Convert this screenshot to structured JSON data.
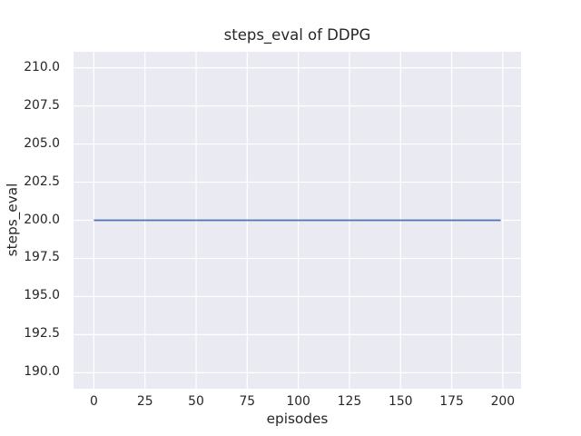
{
  "chart_data": {
    "type": "line",
    "title": "steps_eval of DDPG",
    "xlabel": "episodes",
    "ylabel": "steps_eval",
    "series": [
      {
        "name": "steps_eval",
        "color": "#4c72b0",
        "points": [
          [
            0,
            200.0
          ],
          [
            199,
            200.0
          ]
        ]
      }
    ],
    "xlim": [
      -9.95,
      208.95
    ],
    "ylim": [
      188.95,
      211.05
    ],
    "xticks": [
      0,
      25,
      50,
      75,
      100,
      125,
      150,
      175,
      200
    ],
    "xtick_labels": [
      "0",
      "25",
      "50",
      "75",
      "100",
      "125",
      "150",
      "175",
      "200"
    ],
    "yticks": [
      190.0,
      192.5,
      195.0,
      197.5,
      200.0,
      202.5,
      205.0,
      207.5,
      210.0
    ],
    "ytick_labels": [
      "190.0",
      "192.5",
      "195.0",
      "197.5",
      "200.0",
      "202.5",
      "205.0",
      "207.5",
      "210.0"
    ],
    "grid": true,
    "legend": false,
    "style": {
      "figure_bg": "#ffffff",
      "axes_bg": "#eaeaf2",
      "grid_color": "#ffffff",
      "text_color": "#262626",
      "line_width": 1.8,
      "grid_width": 1.2
    }
  }
}
